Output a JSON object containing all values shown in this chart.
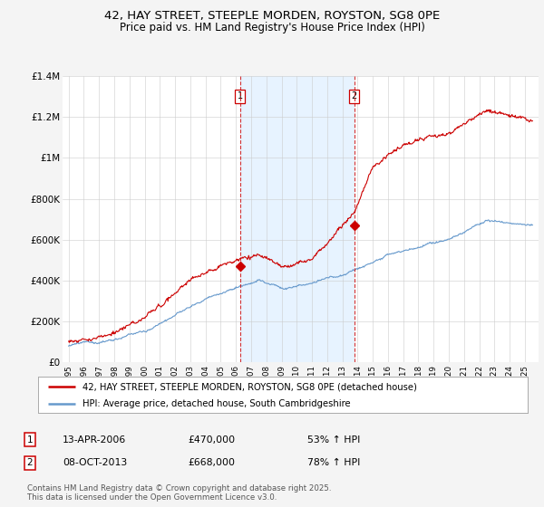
{
  "title": "42, HAY STREET, STEEPLE MORDEN, ROYSTON, SG8 0PE",
  "subtitle": "Price paid vs. HM Land Registry's House Price Index (HPI)",
  "ylim": [
    0,
    1400000
  ],
  "yticks": [
    0,
    200000,
    400000,
    600000,
    800000,
    1000000,
    1200000,
    1400000
  ],
  "ytick_labels": [
    "£0",
    "£200K",
    "£400K",
    "£600K",
    "£800K",
    "£1M",
    "£1.2M",
    "£1.4M"
  ],
  "legend_line1": "42, HAY STREET, STEEPLE MORDEN, ROYSTON, SG8 0PE (detached house)",
  "legend_line2": "HPI: Average price, detached house, South Cambridgeshire",
  "marker1_label": "1",
  "marker1_date": "13-APR-2006",
  "marker1_price": "£470,000",
  "marker1_pct": "53% ↑ HPI",
  "marker1_year": 2006.28,
  "marker2_label": "2",
  "marker2_date": "08-OCT-2013",
  "marker2_price": "£668,000",
  "marker2_pct": "78% ↑ HPI",
  "marker2_year": 2013.77,
  "footer": "Contains HM Land Registry data © Crown copyright and database right 2025.\nThis data is licensed under the Open Government Licence v3.0.",
  "line_color_red": "#cc0000",
  "line_color_blue": "#6699cc",
  "shade_color": "#ddeeff",
  "background_color": "#ffffff",
  "grid_color": "#cccccc",
  "fig_bg_color": "#f4f4f4",
  "title_fontsize": 9.5,
  "subtitle_fontsize": 8.5,
  "axis_fontsize": 7.5
}
